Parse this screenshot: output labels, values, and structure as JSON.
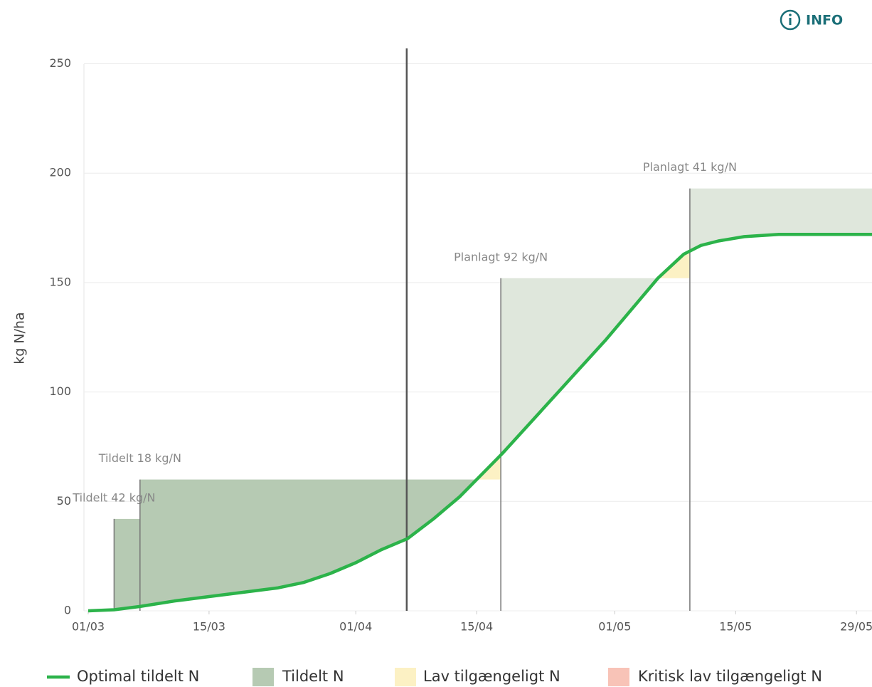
{
  "info_label": "INFO",
  "chart_data": {
    "type": "line",
    "y_label": "kg N/ha",
    "xlim": [
      0,
      90.8
    ],
    "ylim": [
      0,
      257
    ],
    "xticks": [
      {
        "value": 0,
        "label": "01/03"
      },
      {
        "value": 14,
        "label": "15/03"
      },
      {
        "value": 31,
        "label": "01/04"
      },
      {
        "value": 45,
        "label": "15/04"
      },
      {
        "value": 61,
        "label": "01/05"
      },
      {
        "value": 75,
        "label": "15/05"
      },
      {
        "value": 89,
        "label": "29/05"
      }
    ],
    "yticks": [
      0,
      50,
      100,
      150,
      200,
      250
    ],
    "grid": true,
    "series": [
      {
        "name": "Optimal tildelt N",
        "color": "#2cb34a",
        "x": [
          0,
          3,
          6,
          10,
          14,
          18,
          22,
          25,
          28,
          31,
          34,
          37,
          40,
          43,
          46,
          48,
          51,
          54,
          57,
          60,
          63,
          66,
          69,
          71,
          73,
          76,
          80,
          85,
          90.8
        ],
        "values": [
          0,
          0.5,
          2,
          4.5,
          6.5,
          8.5,
          10.5,
          13,
          17,
          22,
          28,
          33,
          42,
          52,
          64,
          72,
          85,
          98,
          111,
          124,
          138,
          152,
          163,
          167,
          169,
          171,
          172,
          172,
          172
        ]
      }
    ],
    "applications": {
      "name": "Tildelt N",
      "color": "#b6cab3",
      "planned_color": "#dfe7dc",
      "x": [
        3,
        6,
        47.8,
        69.7
      ],
      "values": [
        42,
        18,
        92,
        41
      ],
      "labels": [
        "Tildelt 42 kg/N",
        "Tildelt 18 kg/N",
        "Planlagt 92 kg/N",
        "Planlagt 41 kg/N"
      ],
      "planned": [
        false,
        false,
        true,
        true
      ]
    },
    "legend_extra": [
      {
        "name": "Lav tilgængeligt N",
        "color": "#fcf1c4"
      },
      {
        "name": "Kritisk lav tilgængeligt N",
        "color": "#f8c3b7"
      }
    ],
    "today_x": 36.9
  }
}
